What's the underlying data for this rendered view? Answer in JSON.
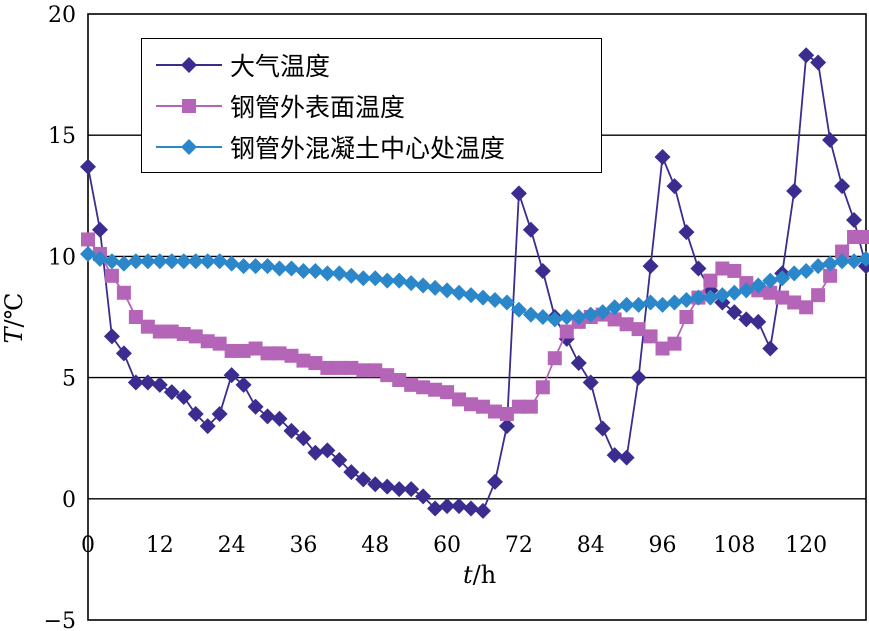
{
  "chart_data": {
    "type": "line",
    "xlabel": {
      "var": "t",
      "unit": "h"
    },
    "ylabel": {
      "var": "T",
      "unit": "℃"
    },
    "xlim": [
      0,
      130
    ],
    "ylim": [
      -5,
      20
    ],
    "x_ticks": [
      "0",
      "12",
      "24",
      "36",
      "48",
      "60",
      "72",
      "84",
      "96",
      "108",
      "120"
    ],
    "y_ticks": [
      "-5",
      "0",
      "5",
      "10",
      "15",
      "20"
    ],
    "grid": "horizontal",
    "legend_position": "top-left",
    "series": [
      {
        "name": "大气温度",
        "color": "#3a2d8f",
        "marker": "diamond",
        "x": [
          0,
          2,
          4,
          6,
          8,
          10,
          12,
          14,
          16,
          18,
          20,
          22,
          24,
          26,
          28,
          30,
          32,
          34,
          36,
          38,
          40,
          42,
          44,
          46,
          48,
          50,
          52,
          54,
          56,
          58,
          60,
          62,
          64,
          66,
          68,
          70,
          72,
          74,
          76,
          78,
          80,
          82,
          84,
          86,
          88,
          90,
          92,
          94,
          96,
          98,
          100,
          102,
          104,
          106,
          108,
          110,
          112,
          114,
          116,
          118,
          120,
          122,
          124,
          126,
          128,
          130
        ],
        "y": [
          13.7,
          11.1,
          6.7,
          6.0,
          4.8,
          4.8,
          4.7,
          4.4,
          4.2,
          3.5,
          3.0,
          3.5,
          5.1,
          4.7,
          3.8,
          3.4,
          3.3,
          2.8,
          2.5,
          1.9,
          2.0,
          1.6,
          1.1,
          0.8,
          0.6,
          0.5,
          0.4,
          0.4,
          0.1,
          -0.4,
          -0.3,
          -0.3,
          -0.4,
          -0.5,
          0.7,
          3.0,
          12.6,
          11.1,
          9.4,
          7.5,
          6.6,
          5.6,
          4.8,
          2.9,
          1.8,
          1.7,
          5.0,
          9.6,
          14.1,
          12.9,
          11.0,
          9.5,
          8.6,
          8.1,
          7.7,
          7.4,
          7.3,
          6.2,
          9.3,
          12.7,
          18.3,
          18.0,
          14.8,
          12.9,
          11.5,
          9.6
        ]
      },
      {
        "name": "钢管外表面温度",
        "color": "#b565b8",
        "marker": "square",
        "x": [
          0,
          2,
          4,
          6,
          8,
          10,
          12,
          14,
          16,
          18,
          20,
          22,
          24,
          26,
          28,
          30,
          32,
          34,
          36,
          38,
          40,
          42,
          44,
          46,
          48,
          50,
          52,
          54,
          56,
          58,
          60,
          62,
          64,
          66,
          68,
          70,
          72,
          74,
          76,
          78,
          80,
          82,
          84,
          86,
          88,
          90,
          92,
          94,
          96,
          98,
          100,
          102,
          104,
          106,
          108,
          110,
          112,
          114,
          116,
          118,
          120,
          122,
          124,
          126,
          128,
          130
        ],
        "y": [
          10.7,
          10.1,
          9.2,
          8.5,
          7.5,
          7.1,
          6.9,
          6.9,
          6.8,
          6.7,
          6.5,
          6.4,
          6.1,
          6.1,
          6.2,
          6.0,
          6.0,
          5.9,
          5.7,
          5.6,
          5.4,
          5.4,
          5.4,
          5.3,
          5.3,
          5.1,
          4.9,
          4.7,
          4.6,
          4.5,
          4.4,
          4.1,
          3.9,
          3.8,
          3.6,
          3.5,
          3.8,
          3.8,
          4.6,
          5.8,
          6.9,
          7.3,
          7.5,
          7.6,
          7.4,
          7.2,
          7.0,
          6.7,
          6.2,
          6.4,
          7.5,
          8.3,
          9.0,
          9.5,
          9.4,
          8.9,
          8.6,
          8.5,
          8.3,
          8.1,
          7.9,
          8.4,
          9.2,
          10.2,
          10.8,
          10.8
        ]
      },
      {
        "name": "钢管外混凝土中心处温度",
        "color": "#2b87c9",
        "marker": "diamond",
        "x": [
          0,
          2,
          4,
          6,
          8,
          10,
          12,
          14,
          16,
          18,
          20,
          22,
          24,
          26,
          28,
          30,
          32,
          34,
          36,
          38,
          40,
          42,
          44,
          46,
          48,
          50,
          52,
          54,
          56,
          58,
          60,
          62,
          64,
          66,
          68,
          70,
          72,
          74,
          76,
          78,
          80,
          82,
          84,
          86,
          88,
          90,
          92,
          94,
          96,
          98,
          100,
          102,
          104,
          106,
          108,
          110,
          112,
          114,
          116,
          118,
          120,
          122,
          124,
          126,
          128,
          130
        ],
        "y": [
          10.1,
          9.9,
          9.8,
          9.7,
          9.8,
          9.8,
          9.8,
          9.8,
          9.8,
          9.8,
          9.8,
          9.8,
          9.7,
          9.6,
          9.6,
          9.6,
          9.5,
          9.5,
          9.4,
          9.4,
          9.3,
          9.3,
          9.2,
          9.1,
          9.1,
          9.0,
          9.0,
          8.9,
          8.8,
          8.7,
          8.6,
          8.5,
          8.4,
          8.3,
          8.2,
          8.1,
          7.8,
          7.6,
          7.5,
          7.4,
          7.5,
          7.5,
          7.6,
          7.7,
          7.9,
          8.0,
          8.0,
          8.1,
          8.0,
          8.1,
          8.2,
          8.3,
          8.3,
          8.4,
          8.5,
          8.6,
          8.8,
          9.0,
          9.1,
          9.3,
          9.4,
          9.6,
          9.7,
          9.8,
          9.8,
          9.9
        ]
      }
    ]
  }
}
